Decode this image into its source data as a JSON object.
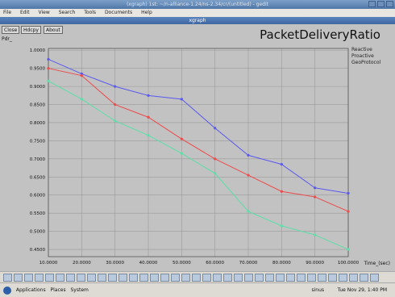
{
  "outer_window": {
    "title": "(xgraph) 1st: ~/n-alliance-1.24/ns-2.34/cr/(untitled) - gedit",
    "menu": [
      "File",
      "Edit",
      "View",
      "Search",
      "Tools",
      "Documents",
      "Help"
    ]
  },
  "plot_window": {
    "title": "xgraph",
    "buttons": {
      "close": "Close",
      "hdcpy": "Hdcpy",
      "about": "About"
    }
  },
  "chart_data": {
    "type": "line",
    "title": "PacketDeliveryRatio",
    "ylabel": "Pdr_",
    "xlabel": "Time_(sec)",
    "x": [
      10,
      20,
      30,
      40,
      50,
      60,
      70,
      80,
      90,
      100
    ],
    "x_tick_labels": [
      "10.0000",
      "20.0000",
      "30.0000",
      "40.0000",
      "50.0000",
      "60.0000",
      "70.0000",
      "80.0000",
      "90.0000",
      "100.0000"
    ],
    "y_ticks": [
      1.0,
      0.95,
      0.9,
      0.85,
      0.8,
      0.75,
      0.7,
      0.65,
      0.6,
      0.55,
      0.5,
      0.45
    ],
    "y_tick_labels": [
      "1.0000",
      "0.9500",
      "0.9000",
      "0.8500",
      "0.8000",
      "0.7500",
      "0.7000",
      "0.6500",
      "0.6000",
      "0.5500",
      "0.5000",
      "0.4500"
    ],
    "xlim": [
      10,
      100
    ],
    "ylim": [
      0.43,
      1.005
    ],
    "grid": true,
    "legend_position": "top-right",
    "series": [
      {
        "name": "Reactive",
        "color": "#5a5aee",
        "values": [
          0.975,
          0.935,
          0.9,
          0.875,
          0.865,
          0.785,
          0.71,
          0.685,
          0.62,
          0.605
        ]
      },
      {
        "name": "Proactive",
        "color": "#ee4a4a",
        "values": [
          0.95,
          0.93,
          0.85,
          0.815,
          0.755,
          0.7,
          0.655,
          0.61,
          0.595,
          0.555
        ]
      },
      {
        "name": "GeoProtocol",
        "color": "#5ae0a8",
        "values": [
          0.915,
          0.865,
          0.805,
          0.765,
          0.715,
          0.66,
          0.555,
          0.515,
          0.49,
          0.45
        ]
      }
    ]
  },
  "taskbar": {
    "applications": "Applications",
    "places": "Places",
    "system": "System",
    "user": "sinus",
    "clock": "Tue Nov 29, 1:40 PM"
  }
}
